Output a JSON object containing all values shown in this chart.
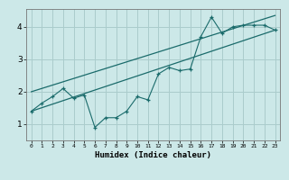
{
  "xlabel": "Humidex (Indice chaleur)",
  "bg_color": "#cce8e8",
  "grid_color": "#aacccc",
  "line_color": "#1a6b6b",
  "xlim": [
    -0.5,
    23.5
  ],
  "ylim": [
    0.5,
    4.55
  ],
  "xticks": [
    0,
    1,
    2,
    3,
    4,
    5,
    6,
    7,
    8,
    9,
    10,
    11,
    12,
    13,
    14,
    15,
    16,
    17,
    18,
    19,
    20,
    21,
    22,
    23
  ],
  "yticks": [
    1,
    2,
    3,
    4
  ],
  "scatter_x": [
    0,
    1,
    2,
    3,
    4,
    5,
    6,
    7,
    8,
    9,
    10,
    11,
    12,
    13,
    14,
    15,
    16,
    17,
    18,
    19,
    20,
    21,
    22,
    23
  ],
  "scatter_y": [
    1.4,
    1.65,
    1.85,
    2.1,
    1.8,
    1.9,
    0.9,
    1.2,
    1.2,
    1.4,
    1.85,
    1.75,
    2.55,
    2.75,
    2.65,
    2.7,
    3.7,
    4.3,
    3.8,
    4.0,
    4.05,
    4.05,
    4.05,
    3.9
  ],
  "line1_x": [
    0,
    23
  ],
  "line1_y": [
    1.4,
    3.9
  ],
  "line2_x": [
    0,
    23
  ],
  "line2_y": [
    2.0,
    4.35
  ]
}
